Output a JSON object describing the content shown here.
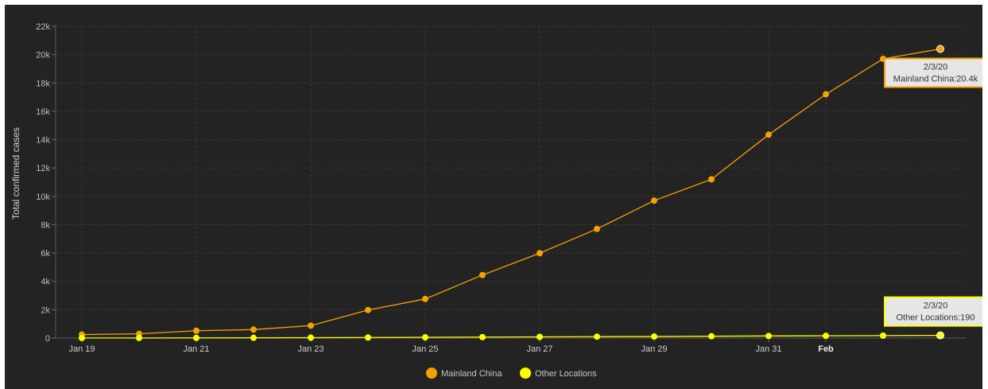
{
  "chart_data": {
    "type": "line",
    "ylabel": "Total confirmed cases",
    "ylim": [
      0,
      22000
    ],
    "y_ticks": [
      "0",
      "2k",
      "4k",
      "6k",
      "8k",
      "10k",
      "12k",
      "14k",
      "16k",
      "18k",
      "20k",
      "22k"
    ],
    "y_tick_values": [
      0,
      2000,
      4000,
      6000,
      8000,
      10000,
      12000,
      14000,
      16000,
      18000,
      20000,
      22000
    ],
    "x_ticks": [
      {
        "label": "Jan 19",
        "date": "2020-01-19",
        "bold": false
      },
      {
        "label": "Jan 21",
        "date": "2020-01-21",
        "bold": false
      },
      {
        "label": "Jan 23",
        "date": "2020-01-23",
        "bold": false
      },
      {
        "label": "Jan 25",
        "date": "2020-01-25",
        "bold": false
      },
      {
        "label": "Jan 27",
        "date": "2020-01-27",
        "bold": false
      },
      {
        "label": "Jan 29",
        "date": "2020-01-29",
        "bold": false
      },
      {
        "label": "Jan 31",
        "date": "2020-01-31",
        "bold": false
      },
      {
        "label": "Feb",
        "date": "2020-02-01",
        "bold": true
      }
    ],
    "x": [
      "2020-01-19",
      "2020-01-20",
      "2020-01-21",
      "2020-01-22",
      "2020-01-23",
      "2020-01-24",
      "2020-01-25",
      "2020-01-26",
      "2020-01-27",
      "2020-01-28",
      "2020-01-29",
      "2020-01-30",
      "2020-01-31",
      "2020-02-01",
      "2020-02-02",
      "2020-02-03"
    ],
    "series": [
      {
        "name": "Mainland China",
        "color": "#f5a100",
        "values": [
          250,
          300,
          520,
          600,
          880,
          1980,
          2760,
          4450,
          5990,
          7700,
          9700,
          11200,
          14350,
          17200,
          19700,
          20400
        ]
      },
      {
        "name": "Other Locations",
        "color": "#ffff00",
        "values": [
          5,
          8,
          12,
          20,
          30,
          40,
          55,
          70,
          85,
          100,
          110,
          130,
          150,
          160,
          175,
          190
        ]
      }
    ],
    "grid": true,
    "legend": "bottom-center",
    "tooltips": [
      {
        "series_index": 0,
        "point_index": 15,
        "title": "2/3/20",
        "text": "Mainland China:20.4k"
      },
      {
        "series_index": 1,
        "point_index": 15,
        "title": "2/3/20",
        "text": "Other Locations:190"
      }
    ]
  }
}
